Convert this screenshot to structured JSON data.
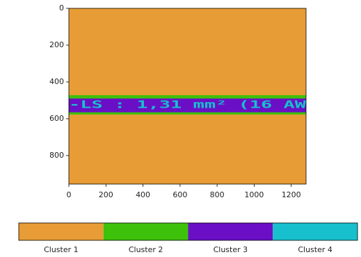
{
  "chart_data": {
    "type": "image",
    "xlim": [
      0,
      1280
    ],
    "ylim": [
      955,
      0
    ],
    "xticks": [
      0,
      200,
      400,
      600,
      800,
      1000,
      1200
    ],
    "yticks": [
      0,
      200,
      400,
      600,
      800
    ],
    "background_cluster": 0,
    "regions": [
      {
        "cluster": 1,
        "x": [
          0,
          1280
        ],
        "y": [
          472,
          577
        ]
      },
      {
        "cluster": 2,
        "x": [
          0,
          1280
        ],
        "y": [
          490,
          565
        ]
      }
    ],
    "annotation": {
      "text": "-LS : 1,31 mm² (16 AW",
      "cluster": 3,
      "x": [
        0,
        1280
      ],
      "y": 525
    },
    "clusters": [
      {
        "name": "Cluster 1",
        "color": "#e89c35"
      },
      {
        "name": "Cluster 2",
        "color": "#3ec10a"
      },
      {
        "name": "Cluster 3",
        "color": "#6a0fc6"
      },
      {
        "name": "Cluster 4",
        "color": "#17c0cc"
      }
    ]
  }
}
